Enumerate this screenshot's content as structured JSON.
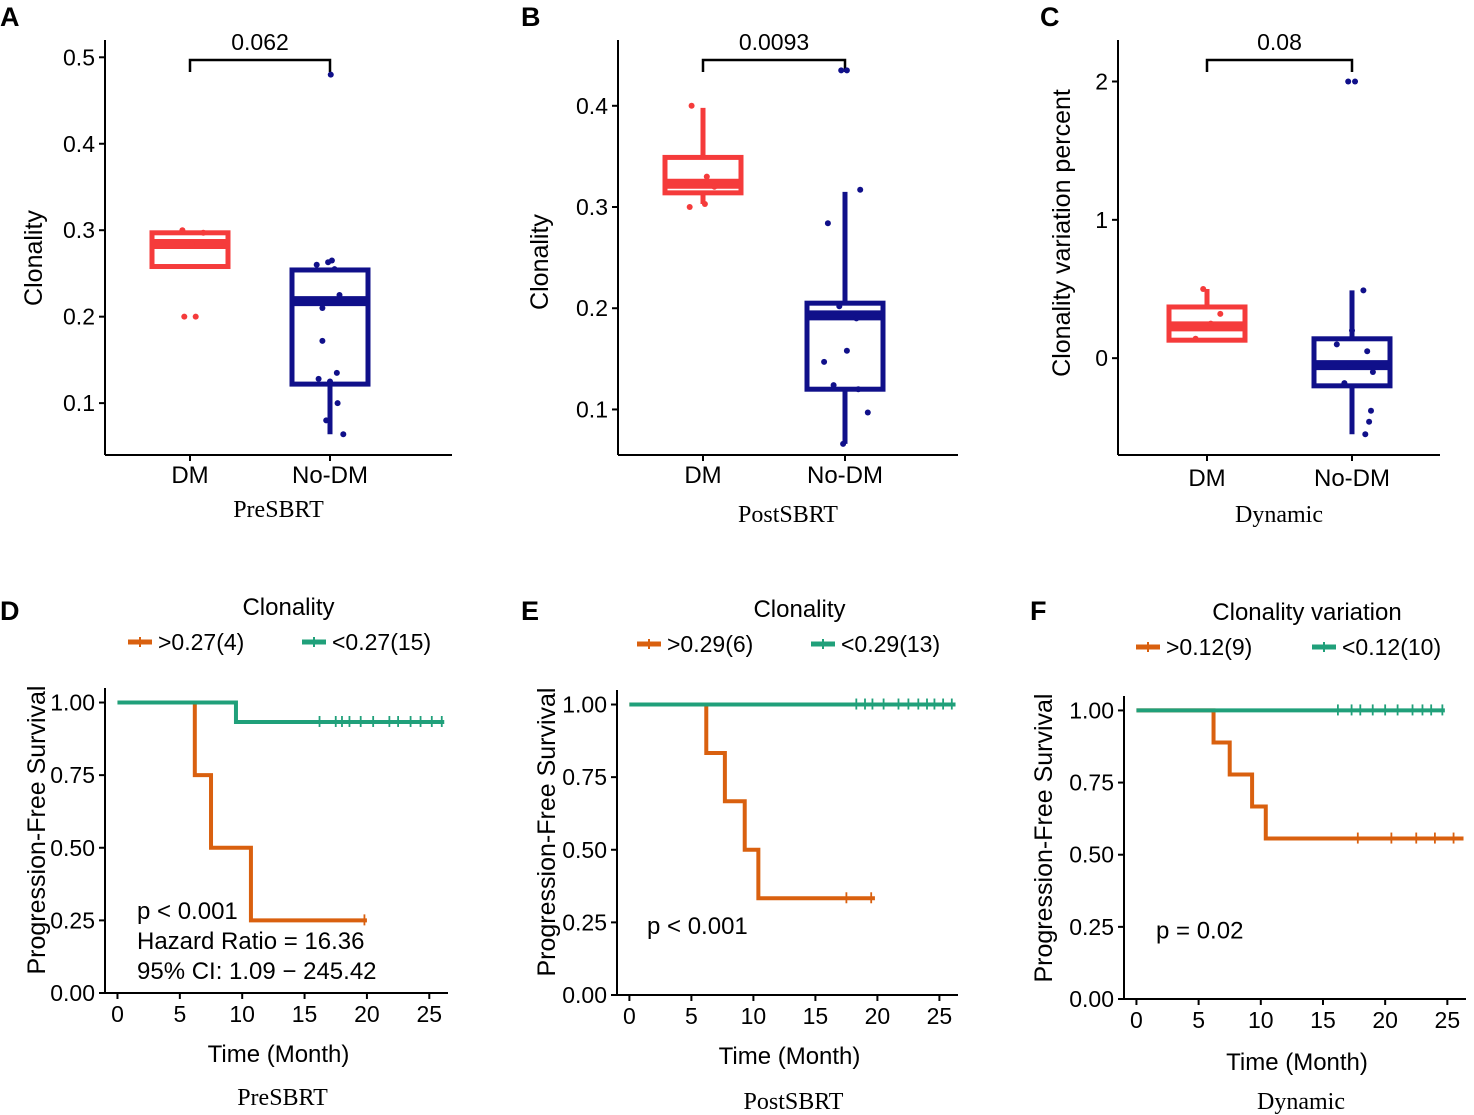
{
  "colors": {
    "dm": "#f53b3b",
    "nodm": "#10108a",
    "high": "#d9600f",
    "low": "#20a07a",
    "axis": "#000000"
  },
  "chart_data": [
    {
      "type": "box",
      "panel": "A",
      "dataset": "PreSBRT",
      "ylabel": "Clonality",
      "xlabel": "PreSBRT",
      "ylim": [
        0.04,
        0.52
      ],
      "yticks": [
        0.1,
        0.2,
        0.3,
        0.4,
        0.5
      ],
      "ytick_labels": [
        "0.1",
        "0.2",
        "0.3",
        "0.4",
        "0.5"
      ],
      "pvalue": "0.062",
      "groups": [
        {
          "name": "DM",
          "color": "dm",
          "min": 0.258,
          "q1": 0.258,
          "median": 0.284,
          "q3": 0.297,
          "max": 0.297,
          "points": [
            [
              -0.2,
              0.3
            ],
            [
              0.05,
              0.284
            ],
            [
              0.35,
              0.297
            ],
            [
              -0.15,
              0.2
            ],
            [
              0.15,
              0.2
            ]
          ]
        },
        {
          "name": "No-DM",
          "color": "nodm",
          "min": 0.064,
          "q1": 0.122,
          "median": 0.218,
          "q3": 0.254,
          "max": 0.254,
          "points": [
            [
              0.02,
              0.48
            ],
            [
              -0.05,
              0.263
            ],
            [
              0.05,
              0.265
            ],
            [
              -0.35,
              0.26
            ],
            [
              0.12,
              0.255
            ],
            [
              -0.2,
              0.172
            ],
            [
              0.18,
              0.135
            ],
            [
              -0.3,
              0.128
            ],
            [
              0.0,
              0.125
            ],
            [
              0.2,
              0.1
            ],
            [
              -0.1,
              0.08
            ],
            [
              0.35,
              0.064
            ],
            [
              -0.2,
              0.21
            ],
            [
              0.25,
              0.225
            ]
          ]
        }
      ]
    },
    {
      "type": "box",
      "panel": "B",
      "dataset": "PostSBRT",
      "ylabel": "Clonality",
      "xlabel": "PostSBRT",
      "ylim": [
        0.055,
        0.465
      ],
      "yticks": [
        0.1,
        0.2,
        0.3,
        0.4
      ],
      "ytick_labels": [
        "0.1",
        "0.2",
        "0.3",
        "0.4"
      ],
      "pvalue": "0.0093",
      "groups": [
        {
          "name": "DM",
          "color": "dm",
          "min": 0.303,
          "q1": 0.314,
          "median": 0.323,
          "q3": 0.349,
          "max": 0.398,
          "points": [
            [
              -0.3,
              0.4
            ],
            [
              0.1,
              0.33
            ],
            [
              -0.35,
              0.3
            ],
            [
              0.05,
              0.303
            ],
            [
              0.3,
              0.32
            ]
          ]
        },
        {
          "name": "No-DM",
          "color": "nodm",
          "min": 0.066,
          "q1": 0.12,
          "median": 0.193,
          "q3": 0.205,
          "max": 0.315,
          "points": [
            [
              -0.1,
              0.435
            ],
            [
              0.05,
              0.435
            ],
            [
              0.4,
              0.317
            ],
            [
              -0.45,
              0.284
            ],
            [
              -0.15,
              0.202
            ],
            [
              0.3,
              0.19
            ],
            [
              -0.55,
              0.147
            ],
            [
              0.05,
              0.158
            ],
            [
              -0.3,
              0.124
            ],
            [
              0.35,
              0.12
            ],
            [
              0.6,
              0.097
            ],
            [
              -0.05,
              0.066
            ]
          ]
        }
      ]
    },
    {
      "type": "box",
      "panel": "C",
      "dataset": "Dynamic",
      "ylabel": "Clonality variation percent",
      "xlabel": "Dynamic",
      "ylim": [
        -0.7,
        2.3
      ],
      "yticks": [
        0,
        1,
        2
      ],
      "ytick_labels": [
        "0",
        "1",
        "2"
      ],
      "pvalue": "0.08",
      "groups": [
        {
          "name": "DM",
          "color": "dm",
          "min": 0.13,
          "q1": 0.13,
          "median": 0.23,
          "q3": 0.37,
          "max": 0.5,
          "points": [
            [
              -0.1,
              0.5
            ],
            [
              0.35,
              0.32
            ],
            [
              -0.3,
              0.14
            ],
            [
              0.1,
              0.25
            ]
          ]
        },
        {
          "name": "No-DM",
          "color": "nodm",
          "min": -0.55,
          "q1": -0.2,
          "median": -0.05,
          "q3": 0.14,
          "max": 0.49,
          "points": [
            [
              -0.1,
              2.0
            ],
            [
              0.08,
              2.0
            ],
            [
              0.3,
              0.49
            ],
            [
              0.0,
              0.2
            ],
            [
              0.4,
              0.05
            ],
            [
              -0.4,
              0.1
            ],
            [
              0.55,
              -0.1
            ],
            [
              -0.2,
              -0.18
            ],
            [
              0.5,
              -0.38
            ],
            [
              0.45,
              -0.46
            ],
            [
              0.35,
              -0.55
            ],
            [
              -0.05,
              -0.06
            ]
          ]
        }
      ]
    },
    {
      "type": "km",
      "panel": "D",
      "dataset": "PreSBRT",
      "title": "Clonality",
      "xlabel": "Time (Month)",
      "ylabel": "Progression-Free Survival",
      "caption": "PreSBRT",
      "xlim": [
        -1,
        26.5
      ],
      "ylim": [
        0,
        1.05
      ],
      "xticks": [
        0,
        5,
        10,
        15,
        20,
        25
      ],
      "xtick_labels": [
        "0",
        "5",
        "10",
        "15",
        "20",
        "25"
      ],
      "yticks": [
        0,
        0.25,
        0.5,
        0.75,
        1.0
      ],
      "ytick_labels": [
        "0.00",
        "0.25",
        "0.50",
        "0.75",
        "1.00"
      ],
      "legend": [
        {
          "label": ">0.27(4)",
          "color": "high"
        },
        {
          "label": "<0.27(15)",
          "color": "low"
        }
      ],
      "stats": [
        "p < 0.001",
        "Hazard Ratio = 16.36",
        "95% CI: 1.09 − 245.42"
      ],
      "series": [
        {
          "name": ">0.27(4)",
          "color": "high",
          "steps": [
            [
              0,
              1
            ],
            [
              6.2,
              0.75
            ],
            [
              7.5,
              0.5
            ],
            [
              10.7,
              0.25
            ]
          ],
          "end": 20,
          "censor": [
            19.8
          ]
        },
        {
          "name": "<0.27(15)",
          "color": "low",
          "steps": [
            [
              0,
              1
            ],
            [
              9.5,
              0.933
            ]
          ],
          "end": 26.2,
          "censor": [
            16.2,
            17.5,
            18.0,
            18.6,
            19.5,
            20.5,
            21.8,
            22.5,
            23.5,
            24.3,
            25.2,
            26.0
          ]
        }
      ]
    },
    {
      "type": "km",
      "panel": "E",
      "dataset": "PostSBRT",
      "title": "Clonality",
      "xlabel": "Time (Month)",
      "ylabel": "Progression-Free Survival",
      "caption": "PostSBRT",
      "xlim": [
        -1,
        26.5
      ],
      "ylim": [
        0,
        1.05
      ],
      "xticks": [
        0,
        5,
        10,
        15,
        20,
        25
      ],
      "xtick_labels": [
        "0",
        "5",
        "10",
        "15",
        "20",
        "25"
      ],
      "yticks": [
        0,
        0.25,
        0.5,
        0.75,
        1.0
      ],
      "ytick_labels": [
        "0.00",
        "0.25",
        "0.50",
        "0.75",
        "1.00"
      ],
      "legend": [
        {
          "label": ">0.29(6)",
          "color": "high"
        },
        {
          "label": "<0.29(13)",
          "color": "low"
        }
      ],
      "stats": [
        "p < 0.001"
      ],
      "series": [
        {
          "name": ">0.29(6)",
          "color": "high",
          "steps": [
            [
              0,
              1
            ],
            [
              6.2,
              0.833
            ],
            [
              7.7,
              0.667
            ],
            [
              9.3,
              0.5
            ],
            [
              10.4,
              0.333
            ]
          ],
          "end": 19.8,
          "censor": [
            17.5,
            19.5
          ]
        },
        {
          "name": "<0.29(13)",
          "color": "low",
          "steps": [
            [
              0,
              1
            ]
          ],
          "end": 26.3,
          "censor": [
            18.3,
            19.0,
            19.6,
            20.5,
            21.7,
            22.5,
            23.3,
            24.0,
            24.6,
            25.3,
            26.0
          ]
        }
      ]
    },
    {
      "type": "km",
      "panel": "F",
      "dataset": "Dynamic",
      "title": "Clonality variation",
      "xlabel": "Time (Month)",
      "ylabel": "Progression-Free Survival",
      "caption": "Dynamic",
      "xlim": [
        -1,
        26.5
      ],
      "ylim": [
        0,
        1.05
      ],
      "xticks": [
        0,
        5,
        10,
        15,
        20,
        25
      ],
      "xtick_labels": [
        "0",
        "5",
        "10",
        "15",
        "20",
        "25"
      ],
      "yticks": [
        0,
        0.25,
        0.5,
        0.75,
        1.0
      ],
      "ytick_labels": [
        "0.00",
        "0.25",
        "0.50",
        "0.75",
        "1.00"
      ],
      "legend": [
        {
          "label": ">0.12(9)",
          "color": "high"
        },
        {
          "label": "<0.12(10)",
          "color": "low"
        }
      ],
      "stats": [
        "p = 0.02"
      ],
      "series": [
        {
          "name": ">0.12(9)",
          "color": "high",
          "steps": [
            [
              0,
              1
            ],
            [
              6.2,
              0.889
            ],
            [
              7.5,
              0.778
            ],
            [
              9.3,
              0.667
            ],
            [
              10.4,
              0.556
            ]
          ],
          "end": 26.3,
          "censor": [
            17.8,
            20.5,
            22.5,
            24.0,
            25.5
          ]
        },
        {
          "name": "<0.12(10)",
          "color": "low",
          "steps": [
            [
              0,
              1
            ]
          ],
          "end": 24.8,
          "censor": [
            16.2,
            17.3,
            18.0,
            19.0,
            20.0,
            21.0,
            22.2,
            23.0,
            23.7,
            24.6
          ]
        }
      ]
    }
  ]
}
